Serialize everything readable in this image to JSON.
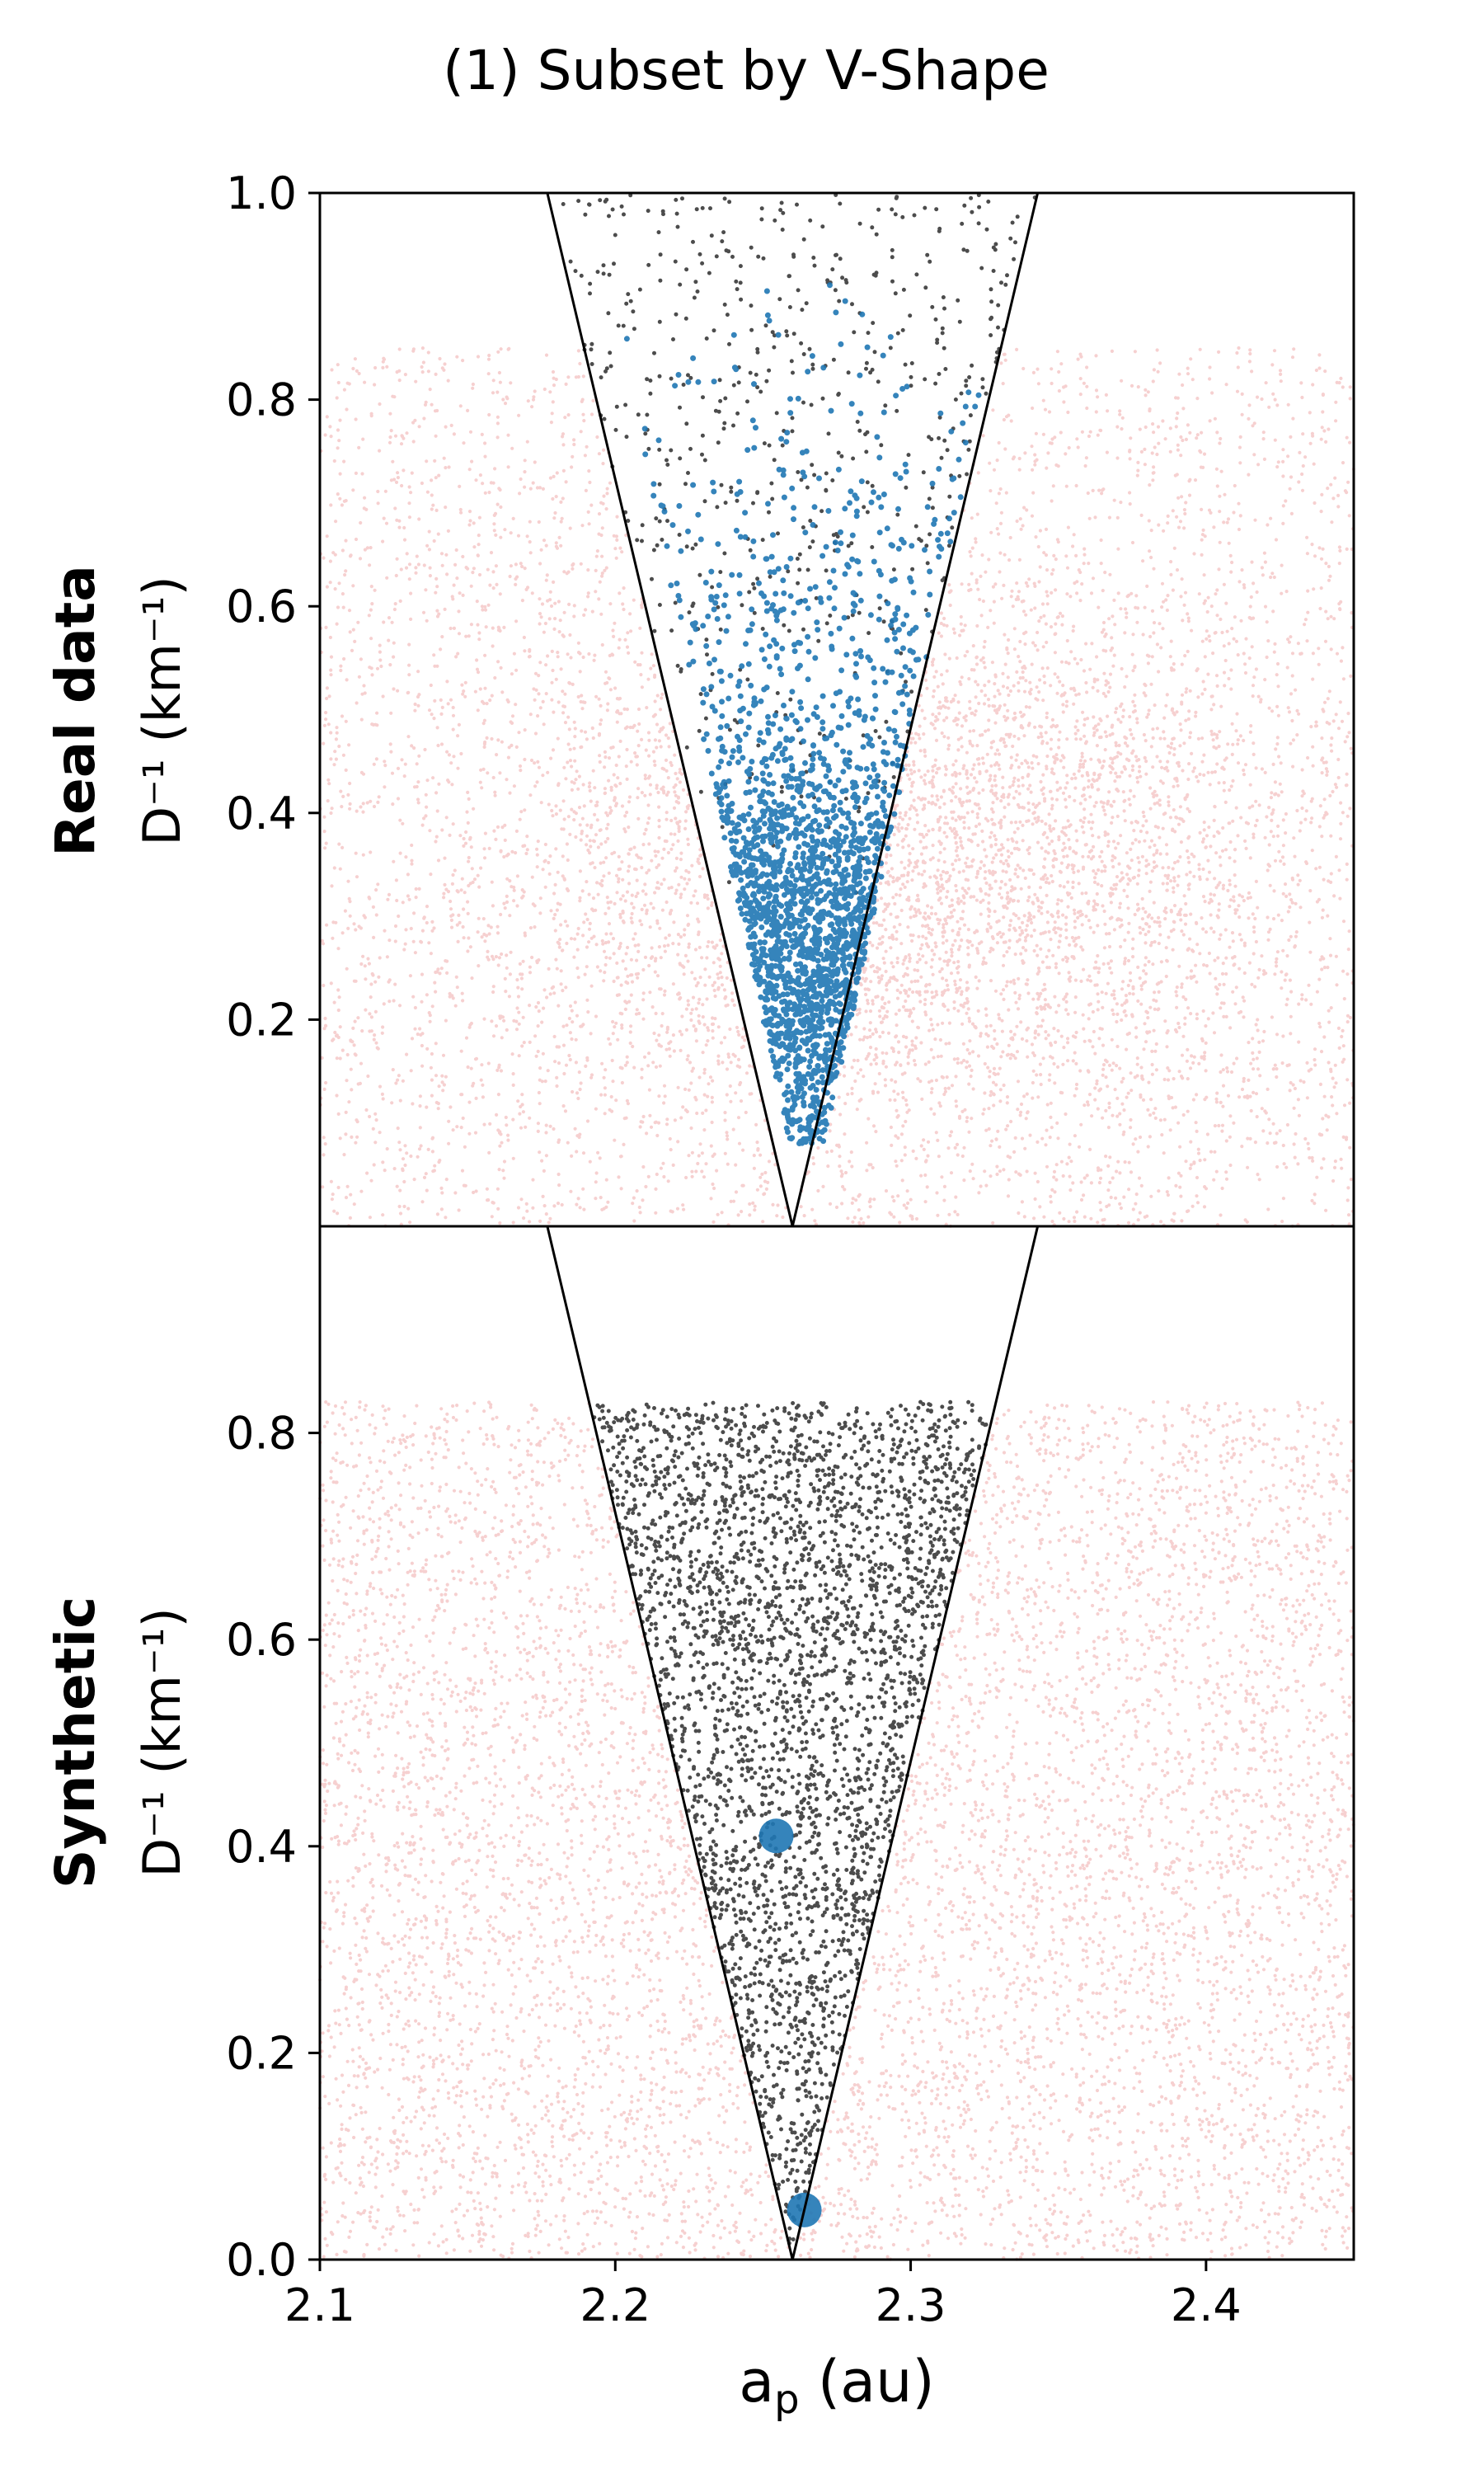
{
  "figure": {
    "title": "(1) Subset by V-Shape"
  },
  "colors": {
    "background_points": "#d62728",
    "v_inside_points": "#000000",
    "selected_points": "#1f77b4",
    "v_outline": "#000000"
  },
  "chart_data": [
    {
      "type": "scatter",
      "row_label": "Real data",
      "ylabel": "D⁻¹ (km⁻¹)",
      "xlabel": "",
      "xlim": [
        2.1,
        2.45
      ],
      "ylim": [
        0.0,
        1.0
      ],
      "yticks": [
        0.2,
        0.4,
        0.6,
        0.8,
        1.0
      ],
      "ytick_labels": [
        "0.2",
        "0.4",
        "0.6",
        "0.8",
        "1.0"
      ],
      "xticks": [],
      "grid": false,
      "v_shape": {
        "apex": [
          2.26,
          0.0
        ],
        "left_top": [
          2.177,
          1.0
        ],
        "right_top": [
          2.343,
          1.0
        ]
      },
      "series": [
        {
          "kind": "background",
          "n": 7000,
          "x_range": [
            2.1,
            2.45
          ],
          "y_range": [
            0.0,
            0.85
          ],
          "color": "#d62728",
          "density_peak": {
            "x": 2.3,
            "y": 0.35
          }
        },
        {
          "kind": "inside_v",
          "n": 550,
          "y_range": [
            0.3,
            1.0
          ],
          "color": "#000000"
        },
        {
          "kind": "selected",
          "n": 2200,
          "y_range": [
            0.08,
            0.95
          ],
          "color": "#1f77b4",
          "density_peak": {
            "y": 0.3
          }
        }
      ]
    },
    {
      "type": "scatter",
      "row_label": "Synthetic",
      "ylabel": "D⁻¹ (km⁻¹)",
      "xlabel": "a_p (au)",
      "xlim": [
        2.1,
        2.45
      ],
      "ylim": [
        0.0,
        1.0
      ],
      "yticks": [
        0.0,
        0.2,
        0.4,
        0.6,
        0.8
      ],
      "ytick_labels": [
        "0.0",
        "0.2",
        "0.4",
        "0.6",
        "0.8"
      ],
      "xticks": [
        2.1,
        2.2,
        2.3,
        2.4
      ],
      "xtick_labels": [
        "2.1",
        "2.2",
        "2.3",
        "2.4"
      ],
      "grid": false,
      "v_shape": {
        "apex": [
          2.26,
          0.0
        ],
        "left_top": [
          2.177,
          1.0
        ],
        "right_top": [
          2.343,
          1.0
        ]
      },
      "series": [
        {
          "kind": "background",
          "n": 7000,
          "x_range": [
            2.1,
            2.45
          ],
          "y_range": [
            0.0,
            0.83
          ],
          "color": "#d62728"
        },
        {
          "kind": "inside_v",
          "n": 3200,
          "y_range": [
            0.0,
            0.83
          ],
          "color": "#000000"
        },
        {
          "kind": "selected",
          "color": "#1f77b4",
          "points": [
            [
              2.2545,
              0.41
            ],
            [
              2.264,
              0.048
            ]
          ]
        }
      ]
    }
  ],
  "x_axis": {
    "label_main": "a",
    "label_sub": "p",
    "label_rest": " (au)"
  }
}
